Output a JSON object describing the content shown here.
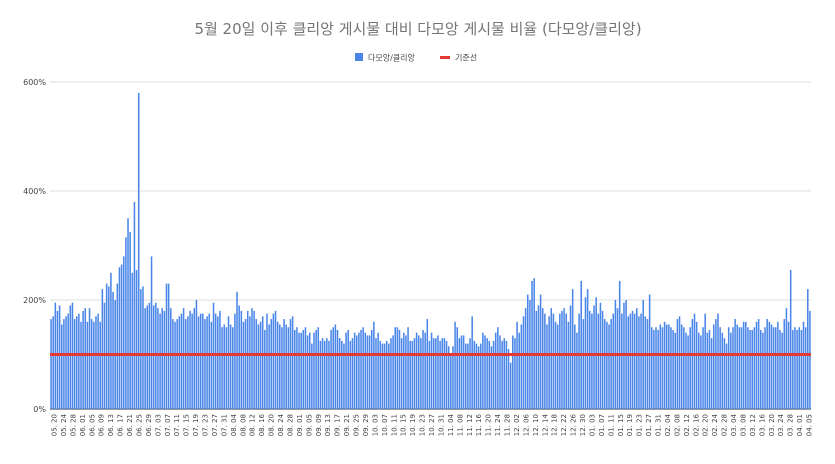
{
  "chart_data": {
    "type": "bar",
    "title": "5월 20일 이후 클리앙 게시물 대비 다모앙 게시물 비율 (다모앙/클리앙)",
    "legend": [
      {
        "name": "다모앙/클리앙",
        "color": "#4a86e8",
        "kind": "bar"
      },
      {
        "name": "기준선",
        "color": "#e53935",
        "kind": "line"
      }
    ],
    "legend_position": "top",
    "ylim": [
      0,
      600
    ],
    "y_ticks": [
      "0%",
      "200%",
      "400%",
      "600%"
    ],
    "y_tick_values": [
      0,
      200,
      400,
      600
    ],
    "grid": true,
    "reference_value": 100,
    "x_tick_labels": [
      "05. 20",
      "05. 24",
      "05. 28",
      "06. 01",
      "06. 05",
      "06. 09",
      "06. 13",
      "06. 17",
      "06. 21",
      "06. 25",
      "06. 29",
      "07. 03",
      "07. 07",
      "07. 11",
      "07. 15",
      "07. 19",
      "07. 23",
      "07. 27",
      "07. 31",
      "08. 04",
      "08. 08",
      "08. 12",
      "08. 16",
      "08. 20",
      "08. 24",
      "08. 28",
      "09. 01",
      "09. 05",
      "09. 09",
      "09. 13",
      "09. 17",
      "09. 21",
      "09. 25",
      "09. 29",
      "10. 03",
      "10. 07",
      "10. 11",
      "10. 15",
      "10. 19",
      "10. 23",
      "10. 27",
      "10. 31",
      "11. 04",
      "11. 08",
      "11. 12",
      "11. 16",
      "11. 20",
      "11. 24",
      "11. 28",
      "12. 02",
      "12. 06",
      "12. 10",
      "12. 14",
      "12. 18",
      "12. 22",
      "12. 26",
      "12. 30",
      "01. 03",
      "01. 07",
      "01. 11",
      "01. 15",
      "01. 19",
      "01. 23",
      "01. 27",
      "01. 31",
      "02. 04",
      "02. 08",
      "02. 12",
      "02. 16",
      "02. 20",
      "02. 24",
      "02. 28",
      "03. 04",
      "03. 08",
      "03. 12",
      "03. 16",
      "03. 20",
      "03. 24",
      "03. 28",
      "04. 01",
      "04. 05"
    ],
    "series": [
      {
        "name": "다모앙/클리앙",
        "values": [
          165,
          170,
          195,
          180,
          190,
          155,
          165,
          170,
          175,
          190,
          195,
          165,
          170,
          175,
          160,
          180,
          185,
          160,
          185,
          165,
          160,
          170,
          175,
          160,
          220,
          195,
          230,
          225,
          250,
          215,
          200,
          230,
          260,
          265,
          280,
          315,
          350,
          325,
          250,
          380,
          255,
          580,
          220,
          225,
          185,
          190,
          195,
          280,
          190,
          195,
          185,
          175,
          185,
          180,
          230,
          230,
          185,
          165,
          160,
          165,
          170,
          175,
          185,
          165,
          170,
          180,
          175,
          185,
          200,
          170,
          175,
          175,
          165,
          170,
          175,
          160,
          195,
          175,
          170,
          180,
          150,
          155,
          150,
          170,
          155,
          150,
          175,
          215,
          190,
          180,
          160,
          165,
          180,
          170,
          185,
          180,
          165,
          155,
          160,
          170,
          145,
          175,
          155,
          165,
          175,
          180,
          160,
          155,
          150,
          165,
          155,
          150,
          165,
          170,
          145,
          150,
          140,
          140,
          145,
          150,
          135,
          140,
          120,
          140,
          145,
          150,
          125,
          130,
          125,
          130,
          125,
          145,
          150,
          155,
          145,
          130,
          125,
          120,
          140,
          145,
          125,
          130,
          140,
          135,
          140,
          145,
          150,
          140,
          135,
          135,
          145,
          160,
          130,
          140,
          125,
          120,
          120,
          125,
          120,
          130,
          135,
          150,
          150,
          145,
          130,
          140,
          135,
          150,
          125,
          125,
          130,
          140,
          135,
          130,
          145,
          140,
          165,
          125,
          140,
          130,
          130,
          135,
          125,
          130,
          130,
          125,
          115,
          100,
          115,
          160,
          150,
          130,
          135,
          135,
          120,
          120,
          130,
          170,
          125,
          120,
          115,
          120,
          140,
          135,
          130,
          125,
          115,
          125,
          140,
          150,
          135,
          125,
          130,
          125,
          110,
          85,
          135,
          130,
          160,
          140,
          155,
          170,
          185,
          210,
          200,
          235,
          240,
          180,
          190,
          210,
          185,
          175,
          155,
          170,
          185,
          175,
          160,
          155,
          175,
          180,
          185,
          175,
          160,
          190,
          220,
          155,
          140,
          175,
          235,
          165,
          205,
          220,
          180,
          175,
          190,
          205,
          175,
          195,
          180,
          165,
          160,
          155,
          165,
          175,
          200,
          185,
          235,
          175,
          195,
          200,
          170,
          175,
          180,
          175,
          185,
          170,
          175,
          200,
          170,
          165,
          210,
          150,
          145,
          150,
          145,
          155,
          150,
          160,
          155,
          155,
          150,
          145,
          140,
          165,
          170,
          155,
          150,
          140,
          135,
          150,
          165,
          175,
          160,
          140,
          135,
          150,
          175,
          140,
          145,
          130,
          155,
          165,
          175,
          150,
          140,
          130,
          120,
          150,
          140,
          150,
          165,
          155,
          150,
          150,
          160,
          160,
          150,
          145,
          145,
          150,
          160,
          165,
          145,
          140,
          150,
          165,
          160,
          155,
          150,
          150,
          160,
          145,
          140,
          165,
          185,
          160,
          255,
          145,
          150,
          145,
          150,
          145,
          160,
          150,
          220,
          180
        ]
      },
      {
        "name": "기준선",
        "values": [
          100
        ]
      }
    ]
  }
}
